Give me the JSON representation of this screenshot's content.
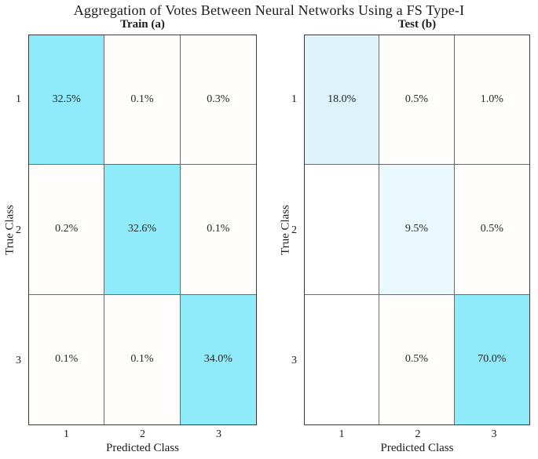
{
  "title": "Aggregation of Votes Between Neural Networks Using a FS Type-I",
  "colors": {
    "diagonal_full_cyan": "#8FEBFA",
    "diagonal_light_cyan": "#DFF3FA",
    "diagonal_faint_cyan": "#E9F9FD",
    "offdiagonal_tint": "#FFFCFC",
    "zero_cell": "#FFFFFF",
    "grid_line": "#6B6B6B",
    "outer_border": "#3A3A3A"
  },
  "panels": [
    {
      "subtitle": "Train (a)",
      "xlabel": "Predicted Class",
      "ylabel": "True Class",
      "row_labels": [
        "1",
        "2",
        "3"
      ],
      "col_labels": [
        "1",
        "2",
        "3"
      ],
      "cells": [
        [
          {
            "label": "32.5%",
            "bg": "#8FEBFA"
          },
          {
            "label": "0.1%",
            "bg": "#FFFCFC"
          },
          {
            "label": "0.3%",
            "bg": "#FFFCFC"
          }
        ],
        [
          {
            "label": "0.2%",
            "bg": "#FFFCFC"
          },
          {
            "label": "32.6%",
            "bg": "#8FEBFA"
          },
          {
            "label": "0.1%",
            "bg": "#FFFCFC"
          }
        ],
        [
          {
            "label": "0.1%",
            "bg": "#FFFCFC"
          },
          {
            "label": "0.1%",
            "bg": "#FFFCFC"
          },
          {
            "label": "34.0%",
            "bg": "#8FEBFA"
          }
        ]
      ]
    },
    {
      "subtitle": "Test (b)",
      "xlabel": "Predicted Class",
      "ylabel": "True Class",
      "row_labels": [
        "1",
        "2",
        "3"
      ],
      "col_labels": [
        "1",
        "2",
        "3"
      ],
      "cells": [
        [
          {
            "label": "18.0%",
            "bg": "#DFF3FA"
          },
          {
            "label": "0.5%",
            "bg": "#FFFCFC"
          },
          {
            "label": "1.0%",
            "bg": "#FFFCFC"
          }
        ],
        [
          {
            "label": "",
            "bg": "#FFFFFF"
          },
          {
            "label": "9.5%",
            "bg": "#E9F9FD"
          },
          {
            "label": "0.5%",
            "bg": "#FFFCFC"
          }
        ],
        [
          {
            "label": "",
            "bg": "#FFFFFF"
          },
          {
            "label": "0.5%",
            "bg": "#FFFCFC"
          },
          {
            "label": "70.0%",
            "bg": "#8FEBFA"
          }
        ]
      ]
    }
  ],
  "chart_data": [
    {
      "type": "heatmap",
      "title": "Train (a)",
      "suptitle": "Aggregation of Votes Between Neural Networks Using a FS Type-I",
      "xlabel": "Predicted Class",
      "ylabel": "True Class",
      "x": [
        "1",
        "2",
        "3"
      ],
      "y": [
        "1",
        "2",
        "3"
      ],
      "values_percent": [
        [
          32.5,
          0.1,
          0.3
        ],
        [
          0.2,
          32.6,
          0.1
        ],
        [
          0.1,
          0.1,
          34.0
        ]
      ],
      "legend": "none",
      "grid": true,
      "colormap": "white-to-cyan, diagonal highlighted"
    },
    {
      "type": "heatmap",
      "title": "Test (b)",
      "suptitle": "Aggregation of Votes Between Neural Networks Using a FS Type-I",
      "xlabel": "Predicted Class",
      "ylabel": "True Class",
      "x": [
        "1",
        "2",
        "3"
      ],
      "y": [
        "1",
        "2",
        "3"
      ],
      "values_percent": [
        [
          18.0,
          0.5,
          1.0
        ],
        [
          null,
          9.5,
          0.5
        ],
        [
          null,
          0.5,
          70.0
        ]
      ],
      "legend": "none",
      "grid": true,
      "colormap": "white-to-cyan, diagonal highlighted"
    }
  ]
}
